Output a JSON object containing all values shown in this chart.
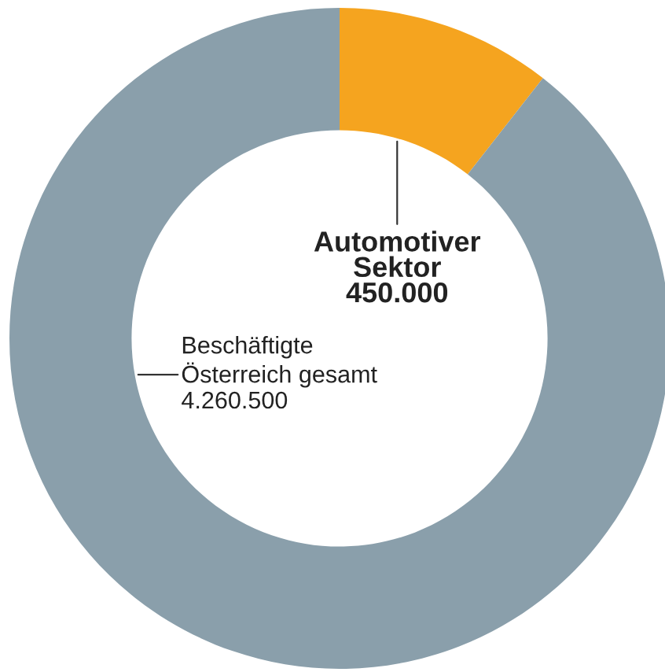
{
  "chart_data": {
    "type": "donut",
    "categories": [
      "Automotiver\nSektor",
      null
    ],
    "values": [
      450000,
      3810500
    ],
    "value_labels": [
      "450.000",
      null
    ],
    "colors": [
      "#f5a41f",
      "#8a9fab"
    ],
    "annotations": [
      "Beschäftigte\nÖsterreich gesamt\n4.260.500"
    ],
    "legend": false
  }
}
